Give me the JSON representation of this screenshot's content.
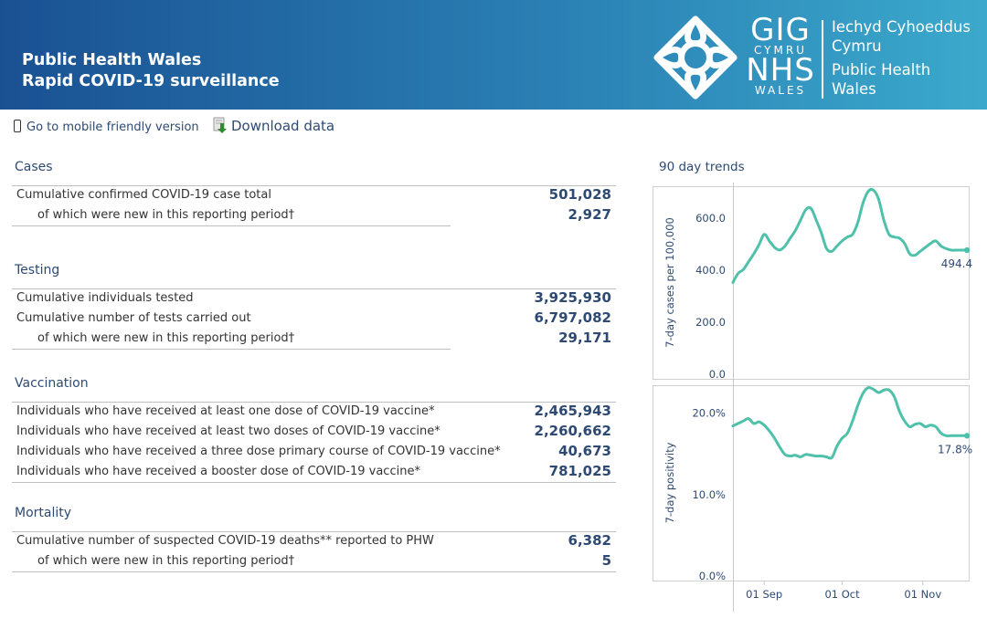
{
  "header": {
    "title_line1": "Public Health Wales",
    "title_line2": "Rapid COVID-19 surveillance",
    "logo": {
      "gig": "GIG",
      "cymru": "CYMRU",
      "nhs": "NHS",
      "wales": "WALES",
      "welsh_line1": "Iechyd Cyhoeddus",
      "welsh_line2": "Cymru",
      "english_line1": "Public Health",
      "english_line2": "Wales"
    }
  },
  "toolbar": {
    "mobile_label": "Go to mobile friendly version",
    "download_label": "Download data"
  },
  "sections": {
    "cases": {
      "title": "Cases",
      "rows": [
        {
          "label": "Cumulative confirmed COVID-19 case total",
          "value": "501,028"
        },
        {
          "label": "of which were new in this reporting period†",
          "value": "2,927"
        }
      ]
    },
    "testing": {
      "title": "Testing",
      "rows": [
        {
          "label": "Cumulative individuals tested",
          "value": "3,925,930"
        },
        {
          "label": "Cumulative number of tests carried out",
          "value": "6,797,082"
        },
        {
          "label": "of which were new in this reporting period†",
          "value": "29,171"
        }
      ]
    },
    "vaccination": {
      "title": "Vaccination",
      "rows": [
        {
          "label": "Individuals who have received at least one dose of COVID-19 vaccine*",
          "value": "2,465,943"
        },
        {
          "label": "Individuals who have received at least two doses of COVID-19 vaccine*",
          "value": "2,260,662"
        },
        {
          "label": "Individuals who have received a three dose primary course of COVID-19 vaccine*",
          "value": "40,673"
        },
        {
          "label": "Individuals who have received a booster dose of COVID-19 vaccine*",
          "value": "781,025"
        }
      ]
    },
    "mortality": {
      "title": "Mortality",
      "rows": [
        {
          "label": "Cumulative number of suspected COVID-19 deaths** reported to PHW",
          "value": "6,382"
        },
        {
          "label": "of which were new in this reporting period†",
          "value": "5"
        }
      ]
    }
  },
  "colors": {
    "header_start": "#1a5193",
    "header_end": "#3ba9cc",
    "accent_text": "#2e4a73",
    "series": "#4fc1aa"
  },
  "chart_data": [
    {
      "type": "line",
      "title": "90 day trends",
      "ylabel": "7-day cases per 100,000",
      "ylim": [
        0,
        740
      ],
      "yticks": [
        0,
        200,
        400,
        600
      ],
      "ytick_labels": [
        "0.0",
        "200.0",
        "400.0",
        "600.0"
      ],
      "xlim": [
        "2021-08-20",
        "2021-11-19"
      ],
      "xticks": [
        "2021-09-01",
        "2021-10-01",
        "2021-11-01"
      ],
      "xtick_labels": [
        "01 Sep",
        "01 Oct",
        "01 Nov"
      ],
      "last_value_label": "494.4",
      "series": [
        {
          "x": [
            "2021-08-20",
            "2021-08-22",
            "2021-08-24",
            "2021-08-26",
            "2021-08-28",
            "2021-08-30",
            "2021-09-01",
            "2021-09-03",
            "2021-09-05",
            "2021-09-07",
            "2021-09-09",
            "2021-09-11",
            "2021-09-13",
            "2021-09-15",
            "2021-09-17",
            "2021-09-19",
            "2021-09-21",
            "2021-09-23",
            "2021-09-25",
            "2021-09-27",
            "2021-09-29",
            "2021-10-01",
            "2021-10-03",
            "2021-10-05",
            "2021-10-07",
            "2021-10-09",
            "2021-10-11",
            "2021-10-13",
            "2021-10-15",
            "2021-10-17",
            "2021-10-19",
            "2021-10-21",
            "2021-10-23",
            "2021-10-25",
            "2021-10-27",
            "2021-10-29",
            "2021-10-31",
            "2021-11-02",
            "2021-11-04",
            "2021-11-06",
            "2021-11-08",
            "2021-11-10",
            "2021-11-12",
            "2021-11-14",
            "2021-11-16",
            "2021-11-18"
          ],
          "values": [
            370,
            405,
            420,
            450,
            480,
            515,
            555,
            530,
            505,
            495,
            510,
            540,
            570,
            610,
            650,
            655,
            610,
            560,
            500,
            490,
            510,
            530,
            545,
            555,
            600,
            675,
            720,
            725,
            690,
            610,
            555,
            545,
            540,
            520,
            480,
            475,
            490,
            505,
            520,
            530,
            510,
            500,
            494.4,
            494.4,
            494.4,
            494.4
          ]
        }
      ]
    },
    {
      "type": "line",
      "ylabel": "7-day positivity",
      "ylim": [
        0,
        24
      ],
      "yticks": [
        0,
        10,
        20
      ],
      "ytick_labels": [
        "0.0%",
        "10.0%",
        "20.0%"
      ],
      "xlim": [
        "2021-08-20",
        "2021-11-19"
      ],
      "xticks": [
        "2021-09-01",
        "2021-10-01",
        "2021-11-01"
      ],
      "xtick_labels": [
        "01 Sep",
        "01 Oct",
        "01 Nov"
      ],
      "last_value_label": "17.8%",
      "series": [
        {
          "x": [
            "2021-08-20",
            "2021-08-22",
            "2021-08-24",
            "2021-08-26",
            "2021-08-28",
            "2021-08-30",
            "2021-09-01",
            "2021-09-03",
            "2021-09-05",
            "2021-09-07",
            "2021-09-09",
            "2021-09-11",
            "2021-09-13",
            "2021-09-15",
            "2021-09-17",
            "2021-09-19",
            "2021-09-21",
            "2021-09-23",
            "2021-09-25",
            "2021-09-27",
            "2021-09-29",
            "2021-10-01",
            "2021-10-03",
            "2021-10-05",
            "2021-10-07",
            "2021-10-09",
            "2021-10-11",
            "2021-10-13",
            "2021-10-15",
            "2021-10-17",
            "2021-10-19",
            "2021-10-21",
            "2021-10-23",
            "2021-10-25",
            "2021-10-27",
            "2021-10-29",
            "2021-10-31",
            "2021-11-02",
            "2021-11-04",
            "2021-11-06",
            "2021-11-08",
            "2021-11-10",
            "2021-11-12",
            "2021-11-14",
            "2021-11-16",
            "2021-11-18"
          ],
          "values": [
            19.0,
            19.3,
            19.6,
            19.9,
            19.3,
            19.5,
            19.1,
            18.4,
            17.5,
            16.4,
            15.5,
            15.3,
            15.4,
            15.2,
            15.5,
            15.4,
            15.3,
            15.3,
            15.2,
            15.1,
            16.5,
            17.5,
            18.1,
            19.6,
            21.5,
            23.0,
            23.7,
            23.5,
            23.1,
            23.4,
            23.4,
            22.6,
            20.8,
            19.6,
            18.9,
            19.2,
            19.3,
            18.9,
            19.1,
            18.9,
            18.1,
            17.8,
            17.8,
            17.8,
            17.8,
            17.8
          ]
        }
      ]
    }
  ]
}
